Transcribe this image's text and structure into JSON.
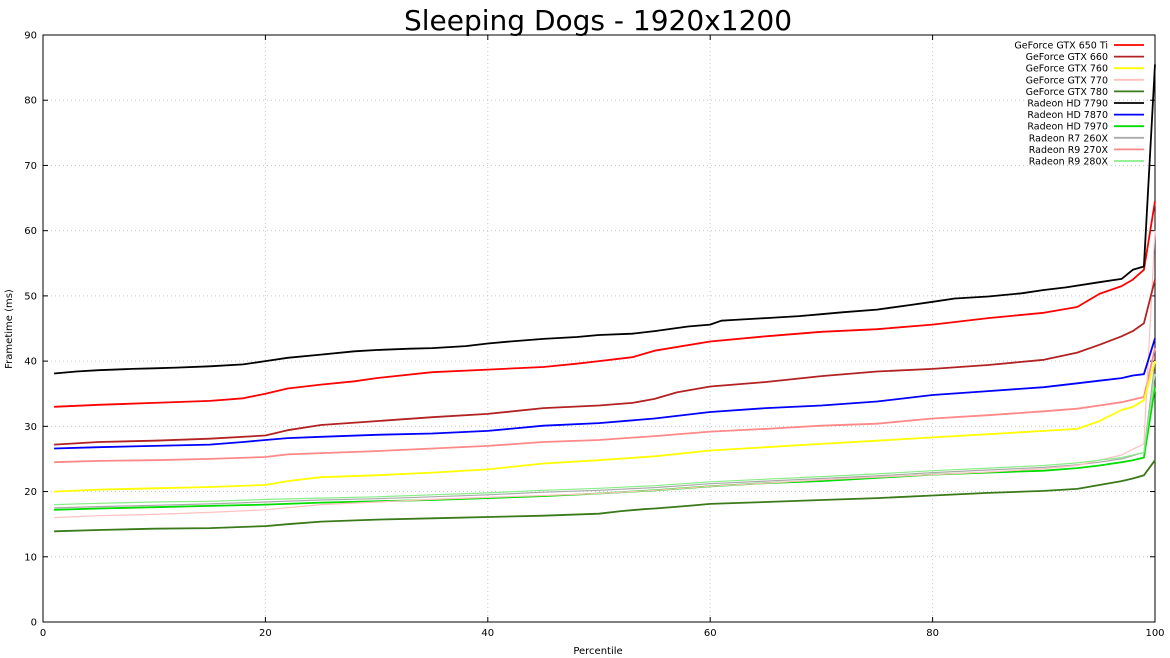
{
  "chart_data": {
    "type": "line",
    "title": "Sleeping Dogs - 1920x1200",
    "xlabel": "Percentile",
    "ylabel": "Frametime (ms)",
    "xlim": [
      0,
      100
    ],
    "ylim": [
      0,
      90
    ],
    "xticks": [
      0,
      20,
      40,
      60,
      80,
      100
    ],
    "yticks": [
      0,
      10,
      20,
      30,
      40,
      50,
      60,
      70,
      80,
      90
    ],
    "grid": true,
    "legend_position": "top-right",
    "series": [
      {
        "name": "GeForce GTX 650 Ti",
        "color": "#ff0000",
        "x": [
          1,
          5,
          10,
          15,
          18,
          20,
          22,
          25,
          28,
          30,
          35,
          40,
          45,
          48,
          50,
          53,
          55,
          60,
          65,
          70,
          75,
          80,
          85,
          90,
          93,
          95,
          97,
          98,
          99,
          100
        ],
        "y": [
          33.0,
          33.3,
          33.6,
          33.9,
          34.3,
          35.0,
          35.8,
          36.4,
          36.9,
          37.4,
          38.3,
          38.7,
          39.1,
          39.6,
          40.0,
          40.6,
          41.6,
          43.0,
          43.8,
          44.5,
          44.9,
          45.6,
          46.6,
          47.4,
          48.3,
          50.3,
          51.5,
          52.5,
          54.0,
          64.5
        ]
      },
      {
        "name": "GeForce GTX 660",
        "color": "#b22222",
        "x": [
          1,
          5,
          10,
          15,
          20,
          22,
          25,
          30,
          35,
          40,
          45,
          50,
          53,
          55,
          57,
          60,
          65,
          70,
          75,
          80,
          85,
          90,
          93,
          95,
          97,
          98,
          99,
          100
        ],
        "y": [
          27.2,
          27.6,
          27.8,
          28.1,
          28.6,
          29.4,
          30.2,
          30.8,
          31.4,
          31.9,
          32.8,
          33.2,
          33.6,
          34.2,
          35.2,
          36.1,
          36.8,
          37.7,
          38.4,
          38.8,
          39.4,
          40.2,
          41.3,
          42.5,
          43.8,
          44.6,
          45.8,
          52.5
        ]
      },
      {
        "name": "GeForce GTX 760",
        "color": "#ffff00",
        "x": [
          1,
          5,
          10,
          15,
          20,
          22,
          25,
          30,
          35,
          40,
          45,
          50,
          55,
          60,
          65,
          70,
          75,
          80,
          85,
          90,
          93,
          95,
          97,
          98,
          99,
          100
        ],
        "y": [
          20.0,
          20.3,
          20.5,
          20.7,
          21.0,
          21.6,
          22.2,
          22.5,
          22.9,
          23.4,
          24.3,
          24.8,
          25.4,
          26.3,
          26.8,
          27.3,
          27.8,
          28.3,
          28.8,
          29.3,
          29.6,
          30.8,
          32.5,
          33.0,
          34.0,
          40.0
        ]
      },
      {
        "name": "GeForce GTX 770",
        "color": "#ffc0c0",
        "x": [
          1,
          5,
          10,
          15,
          20,
          25,
          30,
          35,
          40,
          45,
          50,
          55,
          60,
          65,
          70,
          75,
          80,
          85,
          90,
          93,
          95,
          97,
          98,
          99,
          100
        ],
        "y": [
          16.0,
          16.3,
          16.5,
          16.8,
          17.2,
          18.0,
          18.4,
          18.8,
          19.1,
          19.4,
          19.7,
          20.2,
          20.8,
          21.3,
          21.8,
          22.2,
          22.6,
          23.0,
          23.5,
          24.0,
          24.8,
          25.6,
          26.5,
          27.3,
          60.0
        ]
      },
      {
        "name": "GeForce GTX 780",
        "color": "#3a7a1a",
        "x": [
          1,
          5,
          10,
          15,
          20,
          22,
          25,
          30,
          35,
          40,
          45,
          50,
          52,
          54,
          55,
          58,
          60,
          65,
          70,
          75,
          80,
          85,
          90,
          93,
          95,
          97,
          98,
          99,
          100
        ],
        "y": [
          13.9,
          14.1,
          14.3,
          14.4,
          14.7,
          15.0,
          15.4,
          15.7,
          15.9,
          16.1,
          16.3,
          16.6,
          17.0,
          17.3,
          17.4,
          17.8,
          18.1,
          18.4,
          18.7,
          19.0,
          19.4,
          19.8,
          20.1,
          20.4,
          21.0,
          21.6,
          22.0,
          22.5,
          24.8
        ]
      },
      {
        "name": "Radeon HD 7790",
        "color": "#000000",
        "x": [
          1,
          3,
          5,
          8,
          10,
          12,
          15,
          18,
          20,
          22,
          25,
          28,
          30,
          33,
          35,
          38,
          40,
          42,
          45,
          48,
          50,
          53,
          55,
          58,
          60,
          61,
          62,
          65,
          68,
          70,
          72,
          75,
          78,
          80,
          82,
          85,
          88,
          90,
          92,
          95,
          97,
          98,
          99,
          100
        ],
        "y": [
          38.1,
          38.4,
          38.6,
          38.8,
          38.9,
          39.0,
          39.2,
          39.5,
          40.0,
          40.5,
          41.0,
          41.5,
          41.7,
          41.9,
          42.0,
          42.3,
          42.7,
          43.0,
          43.4,
          43.7,
          44.0,
          44.2,
          44.6,
          45.3,
          45.6,
          46.2,
          46.3,
          46.6,
          46.9,
          47.2,
          47.5,
          47.9,
          48.6,
          49.1,
          49.6,
          49.9,
          50.4,
          50.9,
          51.3,
          52.1,
          52.6,
          54.0,
          54.5,
          85.5
        ]
      },
      {
        "name": "Radeon HD 7870",
        "color": "#0000ff",
        "x": [
          1,
          5,
          10,
          15,
          18,
          20,
          22,
          25,
          30,
          35,
          40,
          45,
          50,
          55,
          60,
          65,
          70,
          75,
          80,
          85,
          90,
          93,
          95,
          97,
          98,
          99,
          100
        ],
        "y": [
          26.6,
          26.8,
          27.0,
          27.2,
          27.6,
          27.9,
          28.2,
          28.4,
          28.7,
          28.9,
          29.3,
          30.1,
          30.5,
          31.2,
          32.2,
          32.8,
          33.2,
          33.8,
          34.8,
          35.4,
          36.0,
          36.6,
          37.0,
          37.4,
          37.8,
          38.0,
          43.5
        ]
      },
      {
        "name": "Radeon HD 7970",
        "color": "#00dd00",
        "x": [
          1,
          5,
          10,
          15,
          20,
          25,
          30,
          35,
          40,
          45,
          50,
          55,
          60,
          65,
          70,
          75,
          80,
          85,
          90,
          93,
          95,
          97,
          98,
          99,
          100
        ],
        "y": [
          17.2,
          17.4,
          17.6,
          17.8,
          18.0,
          18.3,
          18.5,
          18.7,
          19.0,
          19.3,
          19.7,
          20.2,
          20.8,
          21.3,
          21.6,
          22.1,
          22.6,
          22.9,
          23.2,
          23.6,
          24.0,
          24.5,
          24.8,
          25.2,
          36.0
        ]
      },
      {
        "name": "Radeon R7 260X",
        "color": "#aaaaaa",
        "x": [
          1,
          5,
          10,
          15,
          20,
          25,
          30,
          35,
          40,
          45,
          50,
          55,
          60,
          65,
          70,
          75,
          80,
          85,
          90,
          93,
          95,
          97,
          98,
          99,
          100
        ],
        "y": [
          17.5,
          17.7,
          17.9,
          18.1,
          18.4,
          18.7,
          18.9,
          19.2,
          19.5,
          19.9,
          20.2,
          20.6,
          21.2,
          21.6,
          22.0,
          22.4,
          22.9,
          23.3,
          23.7,
          24.1,
          24.5,
          25.0,
          25.5,
          26.0,
          40.0
        ]
      },
      {
        "name": "Radeon R9 270X",
        "color": "#ff8888",
        "x": [
          1,
          5,
          10,
          15,
          20,
          22,
          25,
          30,
          35,
          40,
          45,
          50,
          55,
          60,
          65,
          70,
          75,
          80,
          85,
          90,
          93,
          95,
          97,
          98,
          99,
          100
        ],
        "y": [
          24.5,
          24.7,
          24.8,
          25.0,
          25.3,
          25.7,
          25.9,
          26.2,
          26.6,
          27.0,
          27.6,
          27.9,
          28.5,
          29.2,
          29.6,
          30.1,
          30.4,
          31.2,
          31.7,
          32.3,
          32.7,
          33.2,
          33.7,
          34.1,
          34.5,
          42.0
        ]
      },
      {
        "name": "Radeon R9 280X",
        "color": "#88ee88",
        "x": [
          1,
          5,
          10,
          15,
          20,
          25,
          30,
          35,
          40,
          45,
          50,
          55,
          60,
          65,
          70,
          75,
          80,
          85,
          90,
          93,
          95,
          97,
          98,
          99,
          100
        ],
        "y": [
          18.0,
          18.2,
          18.4,
          18.5,
          18.8,
          19.0,
          19.2,
          19.5,
          19.8,
          20.2,
          20.5,
          20.9,
          21.5,
          21.9,
          22.3,
          22.7,
          23.2,
          23.6,
          24.0,
          24.4,
          24.8,
          25.2,
          25.6,
          26.0,
          38.0
        ]
      }
    ]
  }
}
